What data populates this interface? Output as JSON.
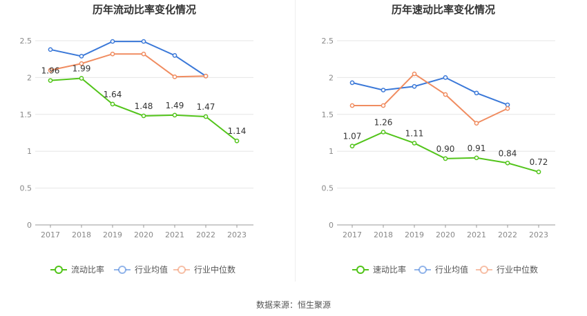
{
  "chart_data": [
    {
      "type": "line",
      "title": "历年流动比率变化情况",
      "categories": [
        "2017",
        "2018",
        "2019",
        "2020",
        "2021",
        "2022",
        "2023"
      ],
      "ylim": [
        0,
        2.5
      ],
      "yticks": [
        "0",
        "0.5",
        "1",
        "1.5",
        "2",
        "2.5"
      ],
      "grid": true,
      "legend_position": "bottom",
      "series": [
        {
          "name": "流动比率",
          "color": "#52c41a",
          "values": [
            1.96,
            1.99,
            1.64,
            1.48,
            1.49,
            1.47,
            1.14
          ],
          "labels": [
            "1.96",
            "1.99",
            "1.64",
            "1.48",
            "1.49",
            "1.47",
            "1.14"
          ]
        },
        {
          "name": "行业均值",
          "color": "#3a78d8",
          "values": [
            2.38,
            2.29,
            2.49,
            2.49,
            2.3,
            2.02,
            null
          ]
        },
        {
          "name": "行业中位数",
          "color": "#f08c60",
          "values": [
            2.1,
            2.19,
            2.32,
            2.32,
            2.01,
            2.02,
            null
          ]
        }
      ]
    },
    {
      "type": "line",
      "title": "历年速动比率变化情况",
      "categories": [
        "2017",
        "2018",
        "2019",
        "2020",
        "2021",
        "2022",
        "2023"
      ],
      "ylim": [
        0,
        2.5
      ],
      "yticks": [
        "0",
        "0.5",
        "1",
        "1.5",
        "2",
        "2.5"
      ],
      "grid": true,
      "legend_position": "bottom",
      "series": [
        {
          "name": "速动比率",
          "color": "#52c41a",
          "values": [
            1.07,
            1.26,
            1.11,
            0.9,
            0.91,
            0.84,
            0.72
          ],
          "labels": [
            "1.07",
            "1.26",
            "1.11",
            "0.90",
            "0.91",
            "0.84",
            "0.72"
          ]
        },
        {
          "name": "行业均值",
          "color": "#3a78d8",
          "values": [
            1.93,
            1.83,
            1.88,
            2.0,
            1.79,
            1.63,
            null
          ]
        },
        {
          "name": "行业中位数",
          "color": "#f08c60",
          "values": [
            1.62,
            1.62,
            2.05,
            1.77,
            1.38,
            1.58,
            null
          ]
        }
      ]
    }
  ],
  "source_text": "数据来源：恒生聚源"
}
